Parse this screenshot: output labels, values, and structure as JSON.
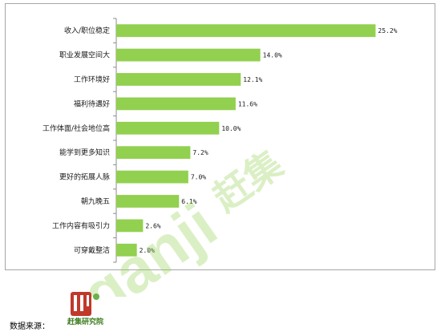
{
  "chart_data": {
    "type": "bar",
    "orientation": "horizontal",
    "categories": [
      "收入/职位稳定",
      "职业发展空间大",
      "工作环境好",
      "福利待遇好",
      "工作体面/社会地位高",
      "能学到更多知识",
      "更好的拓展人脉",
      "朝九晚五",
      "工作内容有吸引力",
      "可穿戴整洁"
    ],
    "values": [
      25.2,
      14.0,
      12.1,
      11.6,
      10.0,
      7.2,
      7.0,
      6.1,
      2.6,
      2.0
    ],
    "value_labels": [
      "25.2%",
      "14.0%",
      "12.1%",
      "11.6%",
      "10.0%",
      "7.2%",
      "7.0%",
      "6.1%",
      "2.6%",
      "2.0%"
    ],
    "xlim": [
      0,
      30
    ],
    "grid": false,
    "bar_color": "#92d050"
  },
  "watermark": {
    "brand_text": "赶集",
    "logo_text": "ganji",
    "color": "#9bd35c"
  },
  "footer": {
    "source_label": "数据来源：",
    "logo_caption": "赶集研究院"
  }
}
